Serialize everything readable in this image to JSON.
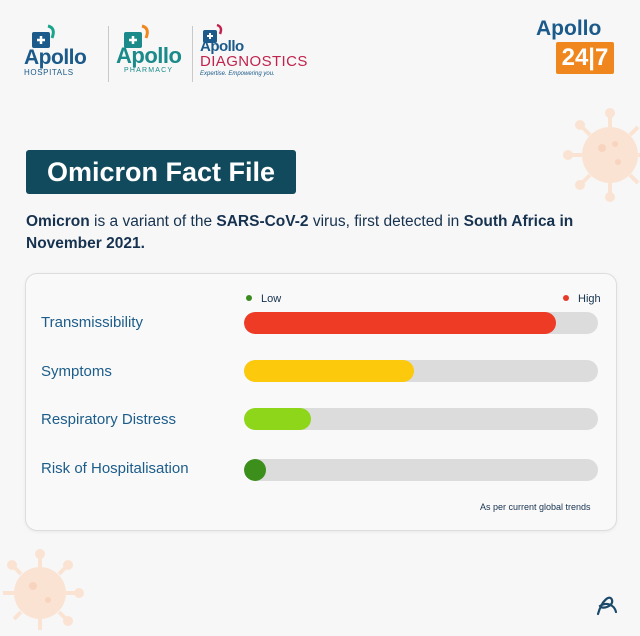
{
  "logos": {
    "hospitals": {
      "brand": "Apollo",
      "sub": "HOSPITALS"
    },
    "pharmacy": {
      "brand": "Apollo",
      "sub": "PHARMACY"
    },
    "diagnostics": {
      "brand": "Apollo",
      "name": "DIAGNOSTICS",
      "tagline": "Expertise. Empowering you."
    },
    "apollo247": {
      "brand": "Apollo",
      "badge": "24|7"
    }
  },
  "title": "Omicron Fact File",
  "intro": {
    "part1": "Omicron",
    "part2": " is a variant of the ",
    "part3": "SARS-CoV-2",
    "part4": " virus, first detected in ",
    "part5": "South Africa in November 2021."
  },
  "legend": {
    "low": "Low",
    "high": "High",
    "low_color": "#3b8b1e",
    "high_color": "#e83a2a"
  },
  "rows": [
    {
      "label": "Transmissibility",
      "level": 0.88,
      "color": "#ee3b26"
    },
    {
      "label": "Symptoms",
      "level": 0.48,
      "color": "#fcc90d"
    },
    {
      "label": "Respiratory Distress",
      "level": 0.19,
      "color": "#8ed61a"
    },
    {
      "label": "Risk of Hospitalisation",
      "level": 0.06,
      "color": "#3d8f1c"
    }
  ],
  "footnote": "As per current global trends"
}
